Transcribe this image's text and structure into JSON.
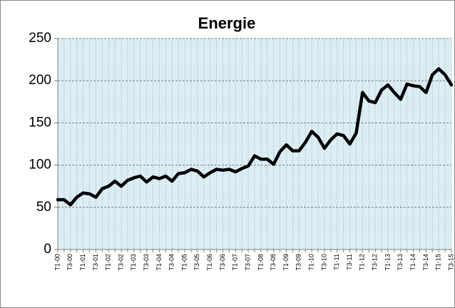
{
  "chart_data": {
    "type": "line",
    "title": "Energie",
    "categories": [
      "T1-00",
      null,
      "T3-00",
      null,
      "T1-01",
      null,
      "T3-01",
      null,
      "T1-02",
      null,
      "T3-02",
      null,
      "T1-03",
      null,
      "T3-03",
      null,
      "T1-04",
      null,
      "T3-04",
      null,
      "T1-05",
      null,
      "T3-05",
      null,
      "T1-06",
      null,
      "T3-06",
      null,
      "T1-07",
      null,
      "T3-07",
      null,
      "T1-08",
      null,
      "T3-08",
      null,
      "T1-09",
      null,
      "T3-09",
      null,
      "T1-10",
      null,
      "T3-10",
      null,
      "T1-11",
      null,
      "T3-11",
      null,
      "T1-12",
      null,
      "T3-12",
      null,
      "T1-13",
      null,
      "T3-13",
      null,
      "T1-14",
      null,
      "T3-14",
      null,
      "T1-15",
      null,
      "T3-15"
    ],
    "values": [
      59,
      59,
      53,
      62,
      67,
      66,
      62,
      72,
      75,
      81,
      75,
      82,
      85,
      87,
      80,
      86,
      84,
      87,
      81,
      90,
      91,
      95,
      93,
      86,
      91,
      95,
      94,
      95,
      92,
      96,
      99,
      111,
      107,
      107,
      101,
      116,
      124,
      117,
      117,
      127,
      140,
      133,
      120,
      130,
      137,
      135,
      125,
      138,
      186,
      176,
      174,
      189,
      195,
      186,
      178,
      196,
      194,
      193,
      186,
      207,
      214,
      207,
      195
    ],
    "color": "#000000",
    "ylim": [
      0,
      250
    ],
    "yticks": [
      0,
      50,
      100,
      150,
      200,
      250
    ],
    "grid": true
  }
}
